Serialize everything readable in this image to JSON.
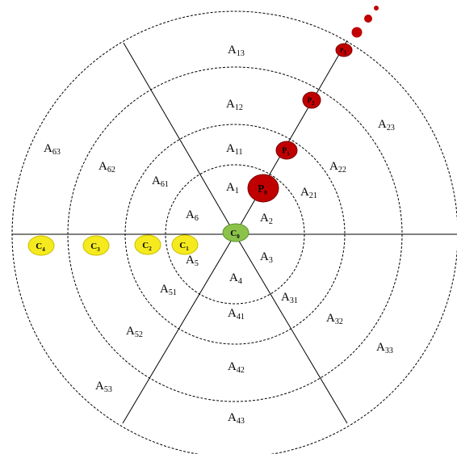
{
  "diagram": {
    "regions": [
      {
        "id": "A1",
        "base": "A",
        "sub": "1"
      },
      {
        "id": "A2",
        "base": "A",
        "sub": "2"
      },
      {
        "id": "A3",
        "base": "A",
        "sub": "3"
      },
      {
        "id": "A4",
        "base": "A",
        "sub": "4"
      },
      {
        "id": "A5",
        "base": "A",
        "sub": "5"
      },
      {
        "id": "A6",
        "base": "A",
        "sub": "6"
      },
      {
        "id": "A11",
        "base": "A",
        "sub": "11"
      },
      {
        "id": "A12",
        "base": "A",
        "sub": "12"
      },
      {
        "id": "A13",
        "base": "A",
        "sub": "13"
      },
      {
        "id": "A21",
        "base": "A",
        "sub": "21"
      },
      {
        "id": "A22",
        "base": "A",
        "sub": "22"
      },
      {
        "id": "A23",
        "base": "A",
        "sub": "23"
      },
      {
        "id": "A31",
        "base": "A",
        "sub": "31"
      },
      {
        "id": "A32",
        "base": "A",
        "sub": "32"
      },
      {
        "id": "A33",
        "base": "A",
        "sub": "33"
      },
      {
        "id": "A41",
        "base": "A",
        "sub": "41"
      },
      {
        "id": "A42",
        "base": "A",
        "sub": "42"
      },
      {
        "id": "A43",
        "base": "A",
        "sub": "43"
      },
      {
        "id": "A51",
        "base": "A",
        "sub": "51"
      },
      {
        "id": "A52",
        "base": "A",
        "sub": "52"
      },
      {
        "id": "A53",
        "base": "A",
        "sub": "53"
      },
      {
        "id": "A61",
        "base": "A",
        "sub": "61"
      },
      {
        "id": "A62",
        "base": "A",
        "sub": "62"
      },
      {
        "id": "A63",
        "base": "A",
        "sub": "63"
      }
    ],
    "center_node": {
      "id": "C0",
      "base": "C",
      "sub": "0",
      "color": "#8bc34a"
    },
    "c_nodes": [
      {
        "id": "C1",
        "base": "C",
        "sub": "1",
        "color": "#f5ea1e"
      },
      {
        "id": "C2",
        "base": "C",
        "sub": "2",
        "color": "#f5ea1e"
      },
      {
        "id": "C3",
        "base": "C",
        "sub": "3",
        "color": "#f5ea1e"
      },
      {
        "id": "C4",
        "base": "C",
        "sub": "4",
        "color": "#f5ea1e"
      }
    ],
    "p_nodes": [
      {
        "id": "P0",
        "base": "P",
        "sub": "0",
        "color": "#c00000"
      },
      {
        "id": "P1",
        "base": "P",
        "sub": "1",
        "color": "#c00000"
      },
      {
        "id": "P2",
        "base": "P",
        "sub": "2",
        "color": "#c00000"
      },
      {
        "id": "P3",
        "base": "P",
        "sub": "3",
        "color": "#c00000"
      }
    ],
    "trail_color": "#c00000",
    "ring_style": "dashed"
  }
}
